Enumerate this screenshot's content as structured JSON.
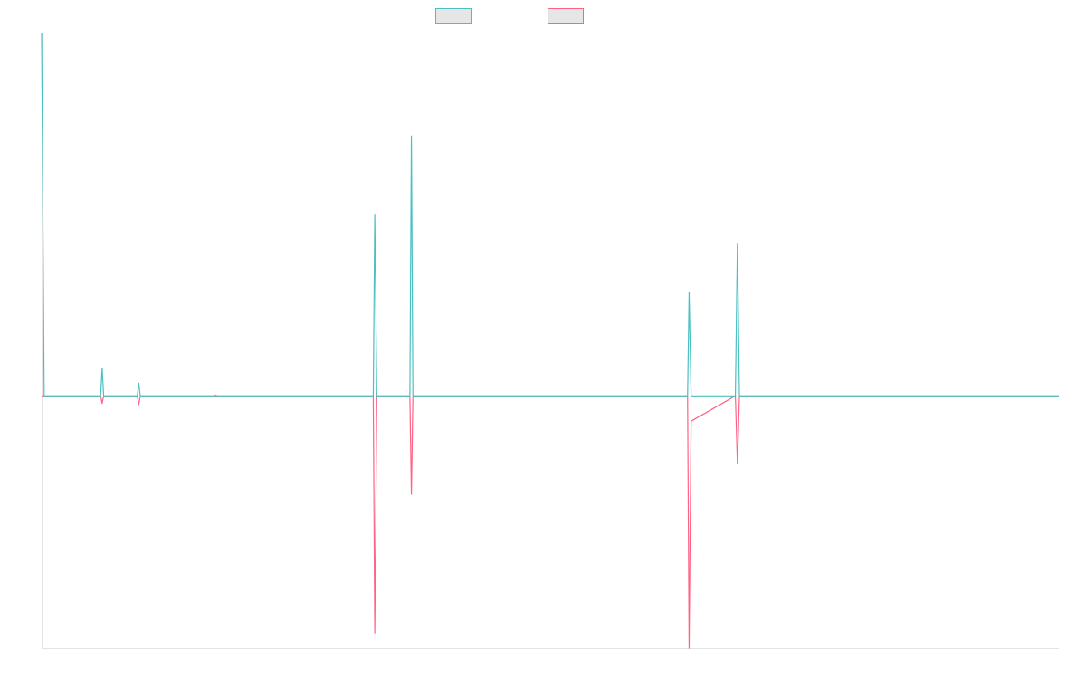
{
  "chart_data": {
    "type": "line",
    "title": "",
    "xlabel": "",
    "ylabel": "",
    "legend_position": "top-center",
    "grid": false,
    "x_range": [
      0,
      1000
    ],
    "y_range": [
      -1.0,
      1.44
    ],
    "baseline": 0,
    "series": [
      {
        "color": "#4bc0c0",
        "points": [
          [
            0,
            1.44
          ],
          [
            2.5,
            0
          ],
          [
            58,
            0
          ],
          [
            59.5,
            0.11
          ],
          [
            61,
            0
          ],
          [
            94,
            0
          ],
          [
            95.5,
            0.05
          ],
          [
            97,
            0
          ],
          [
            169.5,
            0
          ],
          [
            171,
            0.003
          ],
          [
            172.5,
            0
          ],
          [
            326,
            0
          ],
          [
            327.5,
            0.72
          ],
          [
            329.5,
            0
          ],
          [
            362,
            0
          ],
          [
            363.5,
            1.03
          ],
          [
            365,
            0
          ],
          [
            635,
            0
          ],
          [
            636.5,
            0.41
          ],
          [
            638.5,
            0
          ],
          [
            682,
            0
          ],
          [
            684,
            0.605
          ],
          [
            686,
            0
          ],
          [
            1000,
            0
          ]
        ]
      },
      {
        "color": "#ff6384",
        "points": [
          [
            0,
            0
          ],
          [
            58,
            0
          ],
          [
            59.5,
            -0.03
          ],
          [
            61,
            0
          ],
          [
            94,
            0
          ],
          [
            95.5,
            -0.035
          ],
          [
            97,
            0
          ],
          [
            169.5,
            0
          ],
          [
            171,
            -0.003
          ],
          [
            172.5,
            0
          ],
          [
            326,
            0
          ],
          [
            327.5,
            -0.94
          ],
          [
            329.5,
            0
          ],
          [
            362,
            0
          ],
          [
            363.5,
            -0.39
          ],
          [
            365,
            0
          ],
          [
            635,
            0
          ],
          [
            636.5,
            -1.0
          ],
          [
            638.5,
            -0.1
          ],
          [
            682,
            0
          ],
          [
            684,
            -0.27
          ],
          [
            686,
            0
          ],
          [
            1000,
            0
          ]
        ]
      }
    ]
  }
}
